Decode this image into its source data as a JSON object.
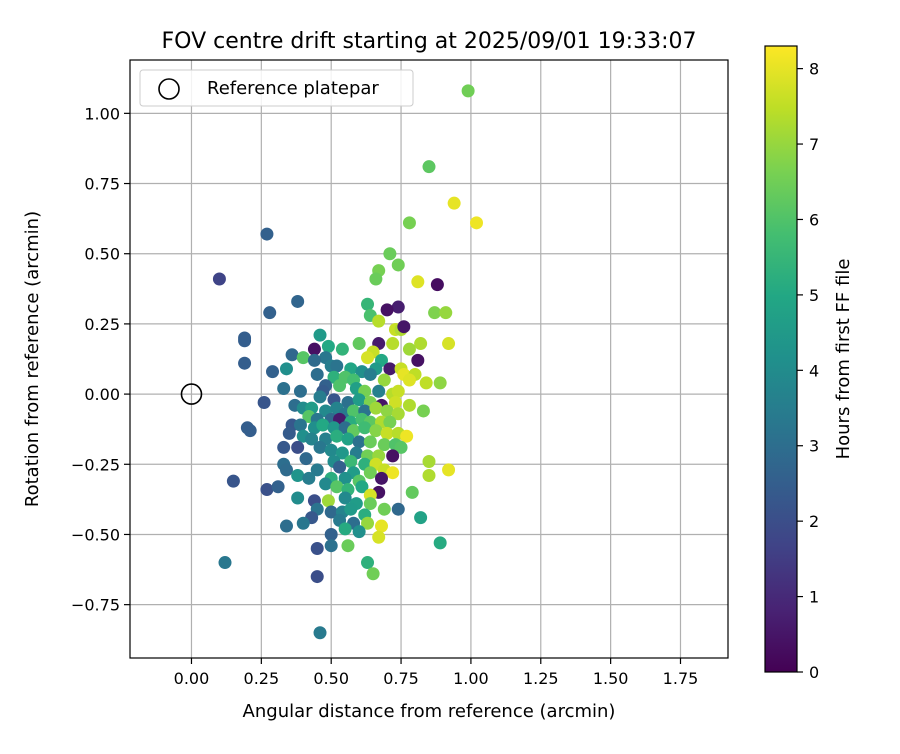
{
  "chart_data": {
    "type": "scatter",
    "title": "FOV centre drift starting at 2025/09/01 19:33:07",
    "xlabel": "Angular distance from reference (arcmin)",
    "ylabel": "Rotation from reference (arcmin)",
    "xlim": [
      -0.22,
      1.92
    ],
    "ylim": [
      -0.94,
      1.19
    ],
    "xticks": [
      "0.00",
      "0.25",
      "0.50",
      "0.75",
      "1.00",
      "1.25",
      "1.50",
      "1.75"
    ],
    "yticks": [
      "−0.75",
      "−0.50",
      "−0.25",
      "0.00",
      "0.25",
      "0.50",
      "0.75",
      "1.00"
    ],
    "xtick_values": [
      0,
      0.25,
      0.5,
      0.75,
      1,
      1.25,
      1.5,
      1.75
    ],
    "ytick_values": [
      -0.75,
      -0.5,
      -0.25,
      0,
      0.25,
      0.5,
      0.75,
      1.0
    ],
    "grid": true,
    "legend": {
      "placement": "top-left",
      "entries": [
        {
          "label": "Reference platepar",
          "marker": "open-circle",
          "x": 0,
          "y": 0
        }
      ]
    },
    "colorbar": {
      "label": "Hours from first FF file",
      "colormap": "viridis",
      "min": 0,
      "max": 8.3,
      "ticks": [
        "0",
        "1",
        "2",
        "3",
        "4",
        "5",
        "6",
        "7",
        "8"
      ],
      "tick_values": [
        0,
        1,
        2,
        3,
        4,
        5,
        6,
        7,
        8
      ]
    },
    "points": [
      {
        "x": 0.99,
        "y": 1.08,
        "h": 6.5
      },
      {
        "x": 0.85,
        "y": 0.81,
        "h": 6.2
      },
      {
        "x": 0.94,
        "y": 0.68,
        "h": 8.0
      },
      {
        "x": 1.02,
        "y": 0.61,
        "h": 8.1
      },
      {
        "x": 0.78,
        "y": 0.61,
        "h": 6.6
      },
      {
        "x": 0.27,
        "y": 0.57,
        "h": 2.6
      },
      {
        "x": 0.71,
        "y": 0.5,
        "h": 6.4
      },
      {
        "x": 0.74,
        "y": 0.46,
        "h": 6.5
      },
      {
        "x": 0.67,
        "y": 0.44,
        "h": 6.6
      },
      {
        "x": 0.66,
        "y": 0.41,
        "h": 6.4
      },
      {
        "x": 0.81,
        "y": 0.4,
        "h": 7.9
      },
      {
        "x": 0.1,
        "y": 0.41,
        "h": 1.7
      },
      {
        "x": 0.88,
        "y": 0.39,
        "h": 0.3
      },
      {
        "x": 0.38,
        "y": 0.33,
        "h": 2.7
      },
      {
        "x": 0.63,
        "y": 0.32,
        "h": 5.5
      },
      {
        "x": 0.74,
        "y": 0.31,
        "h": 0.7
      },
      {
        "x": 0.7,
        "y": 0.3,
        "h": 0.4
      },
      {
        "x": 0.87,
        "y": 0.29,
        "h": 6.7
      },
      {
        "x": 0.91,
        "y": 0.29,
        "h": 7.0
      },
      {
        "x": 0.28,
        "y": 0.29,
        "h": 2.6
      },
      {
        "x": 0.64,
        "y": 0.28,
        "h": 5.9
      },
      {
        "x": 0.67,
        "y": 0.26,
        "h": 7.4
      },
      {
        "x": 0.73,
        "y": 0.23,
        "h": 7.6
      },
      {
        "x": 0.75,
        "y": 0.23,
        "h": 7.3
      },
      {
        "x": 0.76,
        "y": 0.24,
        "h": 0.5
      },
      {
        "x": 0.46,
        "y": 0.21,
        "h": 4.5
      },
      {
        "x": 0.19,
        "y": 0.2,
        "h": 2.5
      },
      {
        "x": 0.19,
        "y": 0.19,
        "h": 2.5
      },
      {
        "x": 0.54,
        "y": 0.16,
        "h": 5.4
      },
      {
        "x": 0.6,
        "y": 0.18,
        "h": 6.3
      },
      {
        "x": 0.67,
        "y": 0.18,
        "h": 0.6
      },
      {
        "x": 0.72,
        "y": 0.18,
        "h": 7.4
      },
      {
        "x": 0.82,
        "y": 0.18,
        "h": 7.3
      },
      {
        "x": 0.92,
        "y": 0.18,
        "h": 7.8
      },
      {
        "x": 0.44,
        "y": 0.16,
        "h": 0.4
      },
      {
        "x": 0.49,
        "y": 0.17,
        "h": 5.0
      },
      {
        "x": 0.65,
        "y": 0.15,
        "h": 7.6
      },
      {
        "x": 0.78,
        "y": 0.16,
        "h": 7.1
      },
      {
        "x": 0.36,
        "y": 0.14,
        "h": 2.8
      },
      {
        "x": 0.4,
        "y": 0.13,
        "h": 6.1
      },
      {
        "x": 0.48,
        "y": 0.13,
        "h": 3.3
      },
      {
        "x": 0.63,
        "y": 0.13,
        "h": 7.8
      },
      {
        "x": 0.68,
        "y": 0.12,
        "h": 5.0
      },
      {
        "x": 0.81,
        "y": 0.12,
        "h": 0.4
      },
      {
        "x": 0.19,
        "y": 0.11,
        "h": 2.5
      },
      {
        "x": 0.44,
        "y": 0.12,
        "h": 2.9
      },
      {
        "x": 0.5,
        "y": 0.1,
        "h": 3.5
      },
      {
        "x": 0.52,
        "y": 0.1,
        "h": 3.2
      },
      {
        "x": 0.57,
        "y": 0.09,
        "h": 4.9
      },
      {
        "x": 0.61,
        "y": 0.08,
        "h": 4.1
      },
      {
        "x": 0.66,
        "y": 0.09,
        "h": 4.5
      },
      {
        "x": 0.71,
        "y": 0.09,
        "h": 0.6
      },
      {
        "x": 0.75,
        "y": 0.09,
        "h": 7.6
      },
      {
        "x": 0.34,
        "y": 0.09,
        "h": 4.1
      },
      {
        "x": 0.29,
        "y": 0.08,
        "h": 2.6
      },
      {
        "x": 0.45,
        "y": 0.07,
        "h": 3.0
      },
      {
        "x": 0.51,
        "y": 0.06,
        "h": 5.3
      },
      {
        "x": 0.55,
        "y": 0.06,
        "h": 6.0
      },
      {
        "x": 0.58,
        "y": 0.05,
        "h": 5.8
      },
      {
        "x": 0.64,
        "y": 0.07,
        "h": 3.5
      },
      {
        "x": 0.69,
        "y": 0.05,
        "h": 7.0
      },
      {
        "x": 0.76,
        "y": 0.07,
        "h": 8.0
      },
      {
        "x": 0.8,
        "y": 0.07,
        "h": 7.5
      },
      {
        "x": 0.84,
        "y": 0.04,
        "h": 7.5
      },
      {
        "x": 0.89,
        "y": 0.04,
        "h": 6.9
      },
      {
        "x": 0.78,
        "y": 0.05,
        "h": 7.9
      },
      {
        "x": 0.48,
        "y": 0.03,
        "h": 2.6
      },
      {
        "x": 0.33,
        "y": 0.02,
        "h": 3.1
      },
      {
        "x": 0.39,
        "y": 0.01,
        "h": 3.0
      },
      {
        "x": 0.47,
        "y": 0.01,
        "h": 2.4
      },
      {
        "x": 0.53,
        "y": 0.03,
        "h": 6.0
      },
      {
        "x": 0.59,
        "y": 0.02,
        "h": 4.7
      },
      {
        "x": 0.62,
        "y": 0.01,
        "h": 6.6
      },
      {
        "x": 0.67,
        "y": 0.01,
        "h": 3.6
      },
      {
        "x": 0.72,
        "y": 0.0,
        "h": 7.4
      },
      {
        "x": 0.74,
        "y": 0.01,
        "h": 7.6
      },
      {
        "x": 0.46,
        "y": -0.01,
        "h": 3.5
      },
      {
        "x": 0.51,
        "y": -0.02,
        "h": 2.2
      },
      {
        "x": 0.56,
        "y": -0.03,
        "h": 3.1
      },
      {
        "x": 0.6,
        "y": -0.02,
        "h": 4.6
      },
      {
        "x": 0.64,
        "y": -0.03,
        "h": 6.7
      },
      {
        "x": 0.68,
        "y": -0.04,
        "h": 0.5
      },
      {
        "x": 0.73,
        "y": -0.03,
        "h": 7.7
      },
      {
        "x": 0.78,
        "y": -0.04,
        "h": 7.3
      },
      {
        "x": 0.83,
        "y": -0.06,
        "h": 6.6
      },
      {
        "x": 0.26,
        "y": -0.03,
        "h": 2.2
      },
      {
        "x": 0.37,
        "y": -0.04,
        "h": 3.0
      },
      {
        "x": 0.4,
        "y": -0.05,
        "h": 4.0
      },
      {
        "x": 0.43,
        "y": -0.05,
        "h": 4.6
      },
      {
        "x": 0.48,
        "y": -0.06,
        "h": 3.9
      },
      {
        "x": 0.52,
        "y": -0.05,
        "h": 3.7
      },
      {
        "x": 0.55,
        "y": -0.07,
        "h": 3.4
      },
      {
        "x": 0.58,
        "y": -0.06,
        "h": 6.0
      },
      {
        "x": 0.62,
        "y": -0.06,
        "h": 3.2
      },
      {
        "x": 0.66,
        "y": -0.05,
        "h": 7.1
      },
      {
        "x": 0.7,
        "y": -0.06,
        "h": 6.9
      },
      {
        "x": 0.74,
        "y": -0.07,
        "h": 7.2
      },
      {
        "x": 0.42,
        "y": -0.08,
        "h": 6.1
      },
      {
        "x": 0.45,
        "y": -0.09,
        "h": 3.3
      },
      {
        "x": 0.5,
        "y": -0.09,
        "h": 2.9
      },
      {
        "x": 0.53,
        "y": -0.09,
        "h": 0.6
      },
      {
        "x": 0.57,
        "y": -0.1,
        "h": 5.2
      },
      {
        "x": 0.61,
        "y": -0.09,
        "h": 5.8
      },
      {
        "x": 0.64,
        "y": -0.1,
        "h": 6.2
      },
      {
        "x": 0.68,
        "y": -0.1,
        "h": 7.3
      },
      {
        "x": 0.71,
        "y": -0.1,
        "h": 6.6
      },
      {
        "x": 0.36,
        "y": -0.11,
        "h": 2.3
      },
      {
        "x": 0.39,
        "y": -0.11,
        "h": 3.2
      },
      {
        "x": 0.44,
        "y": -0.12,
        "h": 4.1
      },
      {
        "x": 0.47,
        "y": -0.11,
        "h": 5.0
      },
      {
        "x": 0.51,
        "y": -0.12,
        "h": 4.4
      },
      {
        "x": 0.55,
        "y": -0.12,
        "h": 3.0
      },
      {
        "x": 0.58,
        "y": -0.13,
        "h": 6.3
      },
      {
        "x": 0.62,
        "y": -0.12,
        "h": 5.7
      },
      {
        "x": 0.66,
        "y": -0.13,
        "h": 6.8
      },
      {
        "x": 0.7,
        "y": -0.14,
        "h": 7.6
      },
      {
        "x": 0.74,
        "y": -0.14,
        "h": 7.4
      },
      {
        "x": 0.77,
        "y": -0.15,
        "h": 8.1
      },
      {
        "x": 0.2,
        "y": -0.12,
        "h": 2.5
      },
      {
        "x": 0.21,
        "y": -0.13,
        "h": 2.5
      },
      {
        "x": 0.35,
        "y": -0.14,
        "h": 2.4
      },
      {
        "x": 0.4,
        "y": -0.15,
        "h": 4.1
      },
      {
        "x": 0.43,
        "y": -0.16,
        "h": 3.7
      },
      {
        "x": 0.48,
        "y": -0.16,
        "h": 3.6
      },
      {
        "x": 0.52,
        "y": -0.15,
        "h": 5.2
      },
      {
        "x": 0.56,
        "y": -0.16,
        "h": 4.8
      },
      {
        "x": 0.6,
        "y": -0.17,
        "h": 3.1
      },
      {
        "x": 0.64,
        "y": -0.17,
        "h": 6.4
      },
      {
        "x": 0.69,
        "y": -0.18,
        "h": 6.4
      },
      {
        "x": 0.73,
        "y": -0.18,
        "h": 6.0
      },
      {
        "x": 0.75,
        "y": -0.19,
        "h": 6.1
      },
      {
        "x": 0.33,
        "y": -0.19,
        "h": 2.3
      },
      {
        "x": 0.38,
        "y": -0.19,
        "h": 2.0
      },
      {
        "x": 0.46,
        "y": -0.19,
        "h": 3.3
      },
      {
        "x": 0.5,
        "y": -0.2,
        "h": 3.9
      },
      {
        "x": 0.54,
        "y": -0.21,
        "h": 4.4
      },
      {
        "x": 0.59,
        "y": -0.21,
        "h": 3.5
      },
      {
        "x": 0.63,
        "y": -0.22,
        "h": 6.5
      },
      {
        "x": 0.67,
        "y": -0.22,
        "h": 7.0
      },
      {
        "x": 0.72,
        "y": -0.22,
        "h": 0.4
      },
      {
        "x": 0.41,
        "y": -0.23,
        "h": 2.8
      },
      {
        "x": 0.51,
        "y": -0.24,
        "h": 4.0
      },
      {
        "x": 0.57,
        "y": -0.24,
        "h": 5.6
      },
      {
        "x": 0.62,
        "y": -0.25,
        "h": 5.3
      },
      {
        "x": 0.66,
        "y": -0.25,
        "h": 7.7
      },
      {
        "x": 0.85,
        "y": -0.24,
        "h": 7.2
      },
      {
        "x": 0.33,
        "y": -0.25,
        "h": 3.0
      },
      {
        "x": 0.34,
        "y": -0.27,
        "h": 2.9
      },
      {
        "x": 0.45,
        "y": -0.27,
        "h": 3.4
      },
      {
        "x": 0.53,
        "y": -0.26,
        "h": 2.6
      },
      {
        "x": 0.58,
        "y": -0.28,
        "h": 4.6
      },
      {
        "x": 0.64,
        "y": -0.28,
        "h": 6.5
      },
      {
        "x": 0.69,
        "y": -0.27,
        "h": 7.6
      },
      {
        "x": 0.72,
        "y": -0.28,
        "h": 8.1
      },
      {
        "x": 0.92,
        "y": -0.27,
        "h": 8.0
      },
      {
        "x": 0.85,
        "y": -0.29,
        "h": 7.3
      },
      {
        "x": 0.38,
        "y": -0.29,
        "h": 4.3
      },
      {
        "x": 0.42,
        "y": -0.3,
        "h": 3.5
      },
      {
        "x": 0.5,
        "y": -0.3,
        "h": 5.2
      },
      {
        "x": 0.55,
        "y": -0.3,
        "h": 4.2
      },
      {
        "x": 0.6,
        "y": -0.31,
        "h": 6.1
      },
      {
        "x": 0.68,
        "y": -0.3,
        "h": 0.5
      },
      {
        "x": 0.15,
        "y": -0.31,
        "h": 2.2
      },
      {
        "x": 0.48,
        "y": -0.32,
        "h": 3.9
      },
      {
        "x": 0.52,
        "y": -0.33,
        "h": 6.1
      },
      {
        "x": 0.56,
        "y": -0.34,
        "h": 5.4
      },
      {
        "x": 0.61,
        "y": -0.33,
        "h": 5.0
      },
      {
        "x": 0.67,
        "y": -0.35,
        "h": 0.4
      },
      {
        "x": 0.27,
        "y": -0.34,
        "h": 2.1
      },
      {
        "x": 0.31,
        "y": -0.33,
        "h": 2.6
      },
      {
        "x": 0.64,
        "y": -0.36,
        "h": 7.8
      },
      {
        "x": 0.79,
        "y": -0.35,
        "h": 6.3
      },
      {
        "x": 0.38,
        "y": -0.37,
        "h": 4.0
      },
      {
        "x": 0.44,
        "y": -0.38,
        "h": 2.0
      },
      {
        "x": 0.49,
        "y": -0.38,
        "h": 7.1
      },
      {
        "x": 0.55,
        "y": -0.37,
        "h": 3.9
      },
      {
        "x": 0.59,
        "y": -0.39,
        "h": 4.6
      },
      {
        "x": 0.64,
        "y": -0.39,
        "h": 6.4
      },
      {
        "x": 0.45,
        "y": -0.41,
        "h": 3.2
      },
      {
        "x": 0.5,
        "y": -0.42,
        "h": 2.8
      },
      {
        "x": 0.54,
        "y": -0.42,
        "h": 3.7
      },
      {
        "x": 0.57,
        "y": -0.41,
        "h": 4.5
      },
      {
        "x": 0.62,
        "y": -0.43,
        "h": 5.2
      },
      {
        "x": 0.69,
        "y": -0.41,
        "h": 6.5
      },
      {
        "x": 0.74,
        "y": -0.41,
        "h": 2.8
      },
      {
        "x": 0.82,
        "y": -0.44,
        "h": 4.8
      },
      {
        "x": 0.43,
        "y": -0.44,
        "h": 2.3
      },
      {
        "x": 0.4,
        "y": -0.46,
        "h": 3.3
      },
      {
        "x": 0.53,
        "y": -0.45,
        "h": 3.4
      },
      {
        "x": 0.58,
        "y": -0.46,
        "h": 3.0
      },
      {
        "x": 0.63,
        "y": -0.46,
        "h": 7.0
      },
      {
        "x": 0.68,
        "y": -0.47,
        "h": 8.0
      },
      {
        "x": 0.34,
        "y": -0.47,
        "h": 3.0
      },
      {
        "x": 0.55,
        "y": -0.48,
        "h": 5.1
      },
      {
        "x": 0.6,
        "y": -0.49,
        "h": 4.1
      },
      {
        "x": 0.5,
        "y": -0.5,
        "h": 2.6
      },
      {
        "x": 0.67,
        "y": -0.51,
        "h": 7.8
      },
      {
        "x": 0.89,
        "y": -0.53,
        "h": 5.1
      },
      {
        "x": 0.45,
        "y": -0.55,
        "h": 2.1
      },
      {
        "x": 0.5,
        "y": -0.54,
        "h": 3.1
      },
      {
        "x": 0.56,
        "y": -0.54,
        "h": 6.4
      },
      {
        "x": 0.12,
        "y": -0.6,
        "h": 3.3
      },
      {
        "x": 0.63,
        "y": -0.6,
        "h": 5.3
      },
      {
        "x": 0.65,
        "y": -0.64,
        "h": 6.5
      },
      {
        "x": 0.45,
        "y": -0.65,
        "h": 2.0
      },
      {
        "x": 0.46,
        "y": -0.85,
        "h": 3.4
      }
    ]
  }
}
